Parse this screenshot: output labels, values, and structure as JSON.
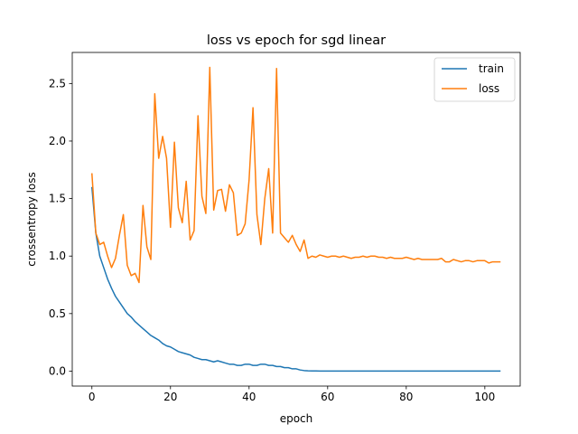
{
  "chart_data": {
    "type": "line",
    "title": "loss vs epoch for sgd linear",
    "xlabel": "epoch",
    "ylabel": "crossentropy loss",
    "xlim": [
      -5,
      109
    ],
    "ylim": [
      -0.13,
      2.77
    ],
    "xticks": [
      0,
      20,
      40,
      60,
      80,
      100
    ],
    "yticks": [
      0.0,
      0.5,
      1.0,
      1.5,
      2.0,
      2.5
    ],
    "ytick_labels": [
      "0.0",
      "0.5",
      "1.0",
      "1.5",
      "2.0",
      "2.5"
    ],
    "grid": false,
    "legend_position": "top-right",
    "series": [
      {
        "name": "train",
        "color": "#1f77b4",
        "x": [
          0,
          1,
          2,
          3,
          4,
          5,
          6,
          7,
          8,
          9,
          10,
          11,
          12,
          13,
          14,
          15,
          16,
          17,
          18,
          19,
          20,
          21,
          22,
          23,
          24,
          25,
          26,
          27,
          28,
          29,
          30,
          31,
          32,
          33,
          34,
          35,
          36,
          37,
          38,
          39,
          40,
          41,
          42,
          43,
          44,
          45,
          46,
          47,
          48,
          49,
          50,
          51,
          52,
          53,
          54,
          55,
          56,
          57,
          58,
          59,
          60,
          61,
          62,
          63,
          64,
          65,
          66,
          67,
          68,
          69,
          70,
          71,
          72,
          73,
          74,
          75,
          76,
          77,
          78,
          79,
          80,
          81,
          82,
          83,
          84,
          85,
          86,
          87,
          88,
          89,
          90,
          91,
          92,
          93,
          94,
          95,
          96,
          97,
          98,
          99,
          100,
          101,
          102,
          103,
          104
        ],
        "values": [
          1.6,
          1.2,
          1.0,
          0.9,
          0.8,
          0.72,
          0.65,
          0.6,
          0.55,
          0.5,
          0.47,
          0.43,
          0.4,
          0.37,
          0.34,
          0.31,
          0.29,
          0.27,
          0.24,
          0.22,
          0.21,
          0.19,
          0.17,
          0.16,
          0.15,
          0.14,
          0.12,
          0.11,
          0.1,
          0.1,
          0.09,
          0.08,
          0.09,
          0.08,
          0.07,
          0.06,
          0.06,
          0.05,
          0.05,
          0.06,
          0.06,
          0.05,
          0.05,
          0.06,
          0.06,
          0.05,
          0.05,
          0.04,
          0.04,
          0.03,
          0.03,
          0.02,
          0.02,
          0.01,
          0.005,
          0.003,
          0.002,
          0.002,
          0.001,
          0.001,
          0.001,
          0.001,
          0.001,
          0.001,
          0.001,
          0.001,
          0.001,
          0.001,
          0.001,
          0.001,
          0.001,
          0.001,
          0.001,
          0.001,
          0.001,
          0.001,
          0.001,
          0.001,
          0.001,
          0.001,
          0.001,
          0.001,
          0.001,
          0.001,
          0.001,
          0.001,
          0.001,
          0.001,
          0.001,
          0.001,
          0.001,
          0.001,
          0.001,
          0.001,
          0.001,
          0.001,
          0.001,
          0.001,
          0.001,
          0.001,
          0.001,
          0.001,
          0.001,
          0.001,
          0.001
        ]
      },
      {
        "name": "loss",
        "color": "#ff7f0e",
        "x": [
          0,
          1,
          2,
          3,
          4,
          5,
          6,
          7,
          8,
          9,
          10,
          11,
          12,
          13,
          14,
          15,
          16,
          17,
          18,
          19,
          20,
          21,
          22,
          23,
          24,
          25,
          26,
          27,
          28,
          29,
          30,
          31,
          32,
          33,
          34,
          35,
          36,
          37,
          38,
          39,
          40,
          41,
          42,
          43,
          44,
          45,
          46,
          47,
          48,
          49,
          50,
          51,
          52,
          53,
          54,
          55,
          56,
          57,
          58,
          59,
          60,
          61,
          62,
          63,
          64,
          65,
          66,
          67,
          68,
          69,
          70,
          71,
          72,
          73,
          74,
          75,
          76,
          77,
          78,
          79,
          80,
          81,
          82,
          83,
          84,
          85,
          86,
          87,
          88,
          89,
          90,
          91,
          92,
          93,
          94,
          95,
          96,
          97,
          98,
          99,
          100,
          101,
          102,
          103,
          104
        ],
        "values": [
          1.72,
          1.2,
          1.1,
          1.12,
          1.0,
          0.9,
          0.98,
          1.18,
          1.36,
          0.92,
          0.83,
          0.85,
          0.77,
          1.44,
          1.08,
          0.97,
          2.41,
          1.85,
          2.04,
          1.85,
          1.25,
          1.99,
          1.42,
          1.29,
          1.65,
          1.14,
          1.22,
          2.22,
          1.52,
          1.37,
          2.64,
          1.4,
          1.57,
          1.58,
          1.39,
          1.62,
          1.55,
          1.18,
          1.2,
          1.28,
          1.66,
          2.29,
          1.36,
          1.1,
          1.5,
          1.76,
          1.2,
          2.63,
          1.2,
          1.16,
          1.12,
          1.18,
          1.1,
          1.04,
          1.14,
          0.98,
          1.0,
          0.99,
          1.01,
          1.0,
          0.99,
          1.0,
          1.0,
          0.99,
          1.0,
          0.99,
          0.98,
          0.99,
          0.99,
          1.0,
          0.99,
          1.0,
          1.0,
          0.99,
          0.99,
          0.98,
          0.99,
          0.98,
          0.98,
          0.98,
          0.99,
          0.98,
          0.97,
          0.98,
          0.97,
          0.97,
          0.97,
          0.97,
          0.97,
          0.98,
          0.95,
          0.95,
          0.97,
          0.96,
          0.95,
          0.96,
          0.96,
          0.95,
          0.96,
          0.96,
          0.96,
          0.94,
          0.95,
          0.95,
          0.95
        ]
      }
    ]
  }
}
